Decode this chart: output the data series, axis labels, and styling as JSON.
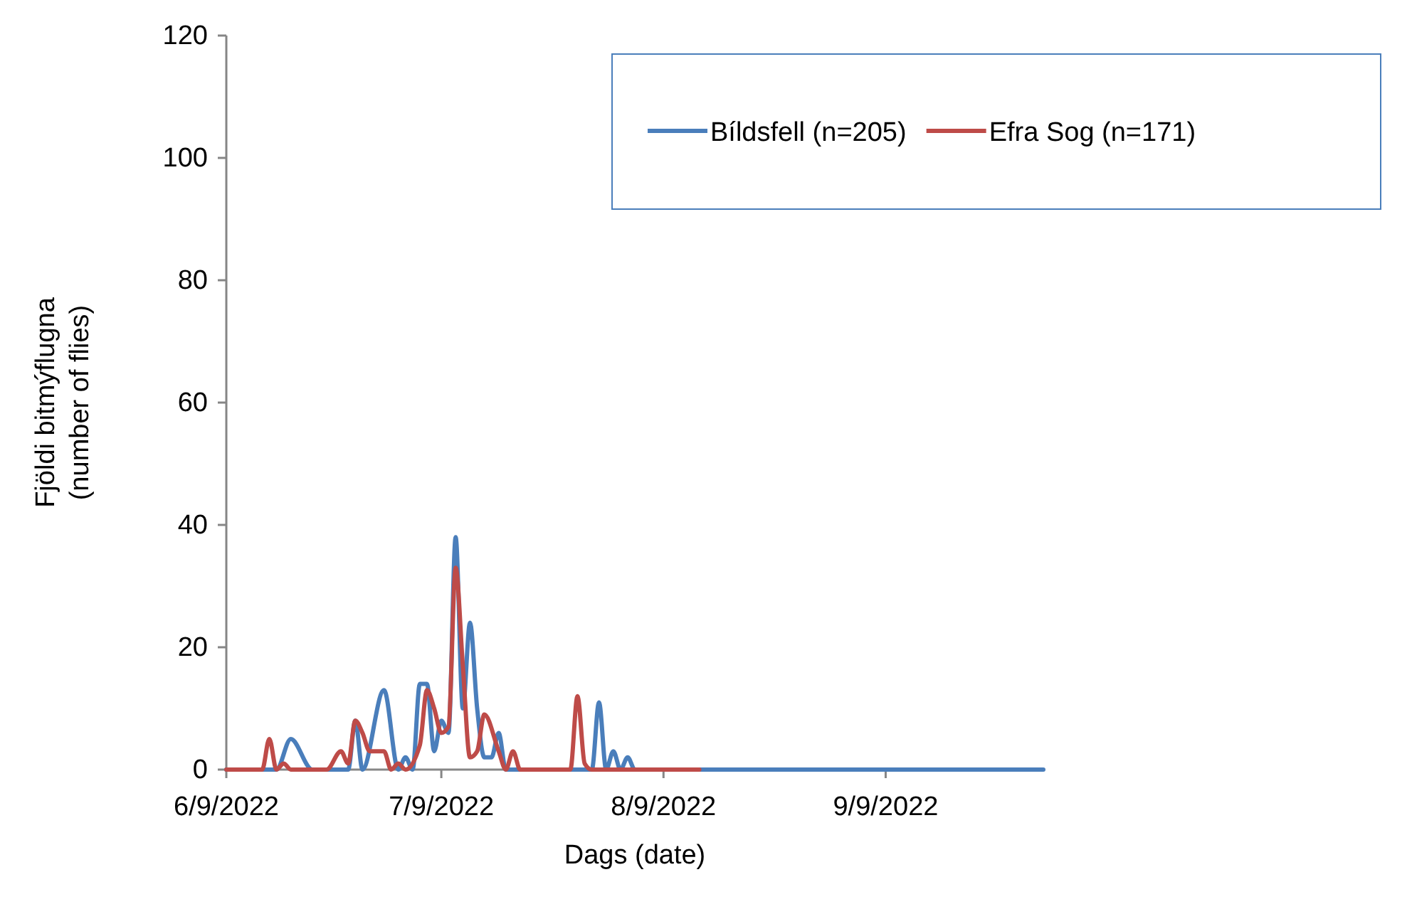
{
  "chart_data": {
    "type": "line",
    "xlabel": "Dags (date)",
    "ylabel": "Fjöldi bitmýflugna\n(number of flies)",
    "xlim": [
      "2022-06-09",
      "2022-10-01"
    ],
    "xticks": [
      {
        "value": "2022-06-09",
        "label": "6/9/2022"
      },
      {
        "value": "2022-07-09",
        "label": "7/9/2022"
      },
      {
        "value": "2022-08-09",
        "label": "8/9/2022"
      },
      {
        "value": "2022-09-09",
        "label": "9/9/2022"
      }
    ],
    "ylim": [
      0,
      120
    ],
    "yticks": [
      0,
      20,
      40,
      60,
      80,
      100,
      120
    ],
    "grid": false,
    "legend": "top right",
    "marker": "none",
    "line_style": "solid",
    "series": [
      {
        "name": "Bíldsfell (n=205)",
        "color": "#4a7ebb",
        "x": [
          "2022-06-09",
          "2022-06-16",
          "2022-06-18",
          "2022-06-21",
          "2022-06-26",
          "2022-06-27",
          "2022-06-28",
          "2022-07-01",
          "2022-07-03",
          "2022-07-04",
          "2022-07-05",
          "2022-07-06",
          "2022-07-07",
          "2022-07-08",
          "2022-07-09",
          "2022-07-10",
          "2022-07-11",
          "2022-07-12",
          "2022-07-13",
          "2022-07-14",
          "2022-07-15",
          "2022-07-16",
          "2022-07-17",
          "2022-07-18",
          "2022-07-30",
          "2022-07-31",
          "2022-08-01",
          "2022-08-02",
          "2022-08-03",
          "2022-08-04",
          "2022-08-05",
          "2022-10-01"
        ],
        "values": [
          0,
          0,
          5,
          0,
          0,
          8,
          0,
          13,
          0,
          2,
          0,
          14,
          14,
          3,
          8,
          6,
          38,
          10,
          24,
          10,
          2,
          2,
          6,
          0,
          0,
          11,
          0,
          3,
          0,
          2,
          0,
          0
        ]
      },
      {
        "name": "Efra Sog (n=171)",
        "color": "#be4b48",
        "x": [
          "2022-06-09",
          "2022-06-14",
          "2022-06-15",
          "2022-06-16",
          "2022-06-17",
          "2022-06-18",
          "2022-06-23",
          "2022-06-25",
          "2022-06-26",
          "2022-06-27",
          "2022-06-28",
          "2022-06-29",
          "2022-07-01",
          "2022-07-02",
          "2022-07-03",
          "2022-07-04",
          "2022-07-06",
          "2022-07-07",
          "2022-07-08",
          "2022-07-09",
          "2022-07-10",
          "2022-07-11",
          "2022-07-12",
          "2022-07-13",
          "2022-07-14",
          "2022-07-15",
          "2022-07-17",
          "2022-07-18",
          "2022-07-19",
          "2022-07-20",
          "2022-07-27",
          "2022-07-28",
          "2022-07-29",
          "2022-07-30",
          "2022-08-14"
        ],
        "values": [
          0,
          0,
          5,
          0,
          1,
          0,
          0,
          3,
          1,
          8,
          6,
          3,
          3,
          0,
          1,
          0,
          4,
          13,
          10,
          6,
          7,
          33,
          17,
          2,
          3,
          9,
          3,
          0,
          3,
          0,
          0,
          12,
          1,
          0,
          0
        ]
      }
    ]
  }
}
